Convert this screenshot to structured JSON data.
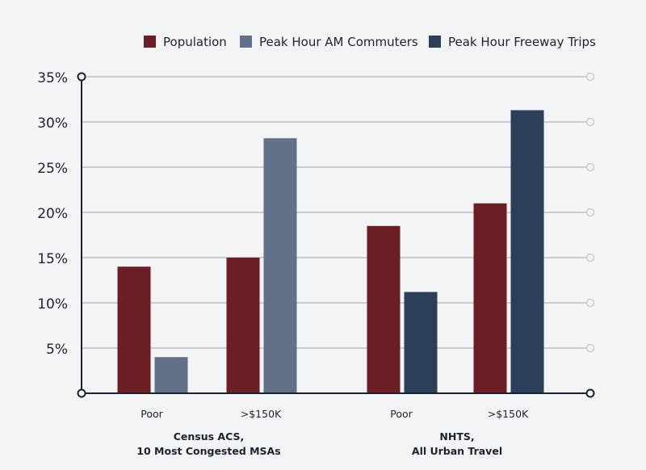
{
  "chart_data": {
    "type": "bar",
    "title": "",
    "xlabel": "",
    "ylabel": "",
    "ylim": [
      0,
      35
    ],
    "y_ticks": [
      5,
      10,
      15,
      20,
      25,
      30,
      35
    ],
    "y_tick_suffix": "%",
    "grid": true,
    "legend_position": "top-right",
    "series": [
      {
        "name": "Population",
        "color": "#6b1f24"
      },
      {
        "name": "Peak Hour AM Commuters",
        "color": "#627089"
      },
      {
        "name": "Peak Hour Freeway Trips",
        "color": "#2c3f58"
      }
    ],
    "groups": [
      {
        "label_line1": "Census ACS,",
        "label_line2": "10 Most Congested MSAs",
        "categories": [
          {
            "label": "Poor",
            "bars": [
              {
                "series": "Population",
                "value": 14.0
              },
              {
                "series": "Peak Hour AM Commuters",
                "value": 4.0
              }
            ]
          },
          {
            "label": ">$150K",
            "bars": [
              {
                "series": "Population",
                "value": 15.0
              },
              {
                "series": "Peak Hour AM Commuters",
                "value": 28.2
              }
            ]
          }
        ]
      },
      {
        "label_line1": "NHTS,",
        "label_line2": "All Urban Travel",
        "categories": [
          {
            "label": "Poor",
            "bars": [
              {
                "series": "Population",
                "value": 18.5
              },
              {
                "series": "Peak Hour Freeway Trips",
                "value": 11.2
              }
            ]
          },
          {
            "label": ">$150K",
            "bars": [
              {
                "series": "Population",
                "value": 21.0
              },
              {
                "series": "Peak Hour Freeway Trips",
                "value": 31.3
              }
            ]
          }
        ]
      }
    ]
  }
}
